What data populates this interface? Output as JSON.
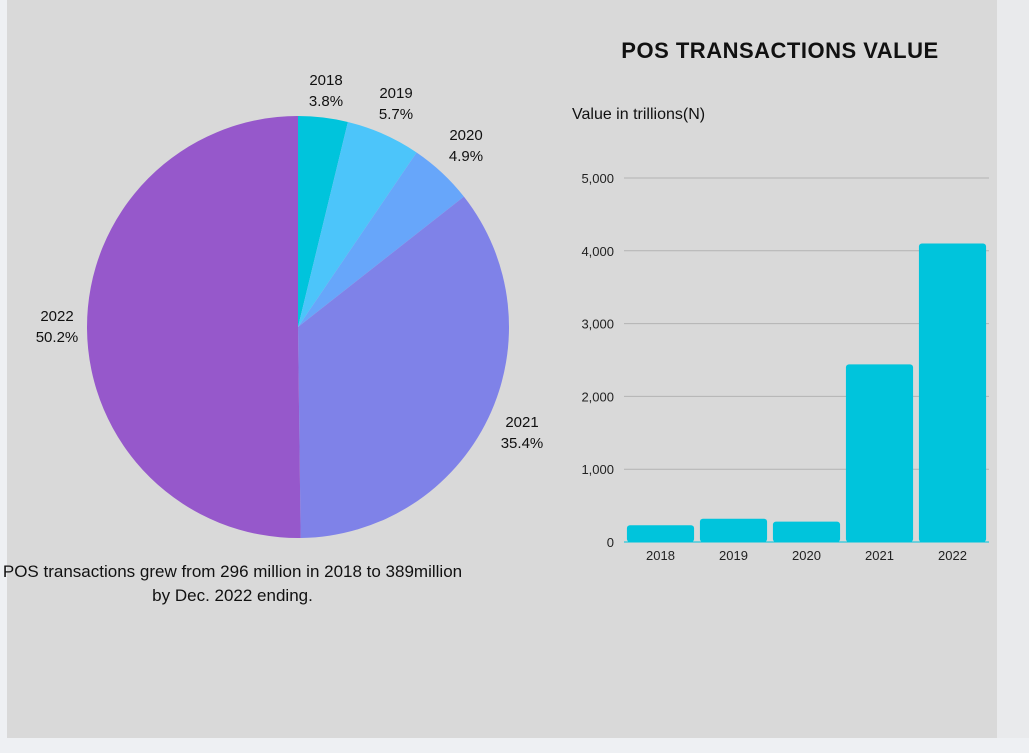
{
  "chart_data": [
    {
      "type": "pie",
      "categories": [
        "2018",
        "2019",
        "2020",
        "2021",
        "2022"
      ],
      "values": [
        3.8,
        5.7,
        4.9,
        35.4,
        50.2
      ],
      "value_labels": [
        "3.8%",
        "5.7%",
        "4.9%",
        "35.4%",
        "50.2%"
      ],
      "colors": [
        "#00c4dc",
        "#4cc5fa",
        "#67a6fa",
        "#7f82e8",
        "#9658cb"
      ],
      "caption": "POS transactions grew from 296 million in 2018 to 389million by Dec. 2022 ending."
    },
    {
      "type": "bar",
      "title": "POS TRANSACTIONS VALUE",
      "ylabel": "Value in trillions(N)",
      "categories": [
        "2018",
        "2019",
        "2020",
        "2021",
        "2022"
      ],
      "values": [
        230,
        320,
        280,
        2440,
        4100
      ],
      "ylim": [
        0,
        5000
      ],
      "yticks": [
        0,
        1000,
        2000,
        3000,
        4000,
        5000
      ],
      "ytick_labels": [
        "0",
        "1,000",
        "2,000",
        "3,000",
        "4,000",
        "5,000"
      ],
      "color": "#00c4dc",
      "grid": true
    }
  ]
}
